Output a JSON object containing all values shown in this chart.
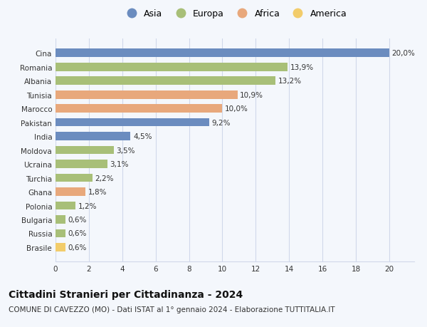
{
  "categories": [
    "Brasile",
    "Russia",
    "Bulgaria",
    "Polonia",
    "Ghana",
    "Turchia",
    "Ucraina",
    "Moldova",
    "India",
    "Pakistan",
    "Marocco",
    "Tunisia",
    "Albania",
    "Romania",
    "Cina"
  ],
  "values": [
    0.6,
    0.6,
    0.6,
    1.2,
    1.8,
    2.2,
    3.1,
    3.5,
    4.5,
    9.2,
    10.0,
    10.9,
    13.2,
    13.9,
    20.0
  ],
  "labels": [
    "0,6%",
    "0,6%",
    "0,6%",
    "1,2%",
    "1,8%",
    "2,2%",
    "3,1%",
    "3,5%",
    "4,5%",
    "9,2%",
    "10,0%",
    "10,9%",
    "13,2%",
    "13,9%",
    "20,0%"
  ],
  "bar_colors": [
    "#f2cc6b",
    "#a8bf78",
    "#a8bf78",
    "#a8bf78",
    "#e8a87c",
    "#a8bf78",
    "#a8bf78",
    "#a8bf78",
    "#6b8cbf",
    "#6b8cbf",
    "#e8a87c",
    "#e8a87c",
    "#a8bf78",
    "#a8bf78",
    "#6b8cbf"
  ],
  "title1": "Cittadini Stranieri per Cittadinanza - 2024",
  "title2": "COMUNE DI CAVEZZO (MO) - Dati ISTAT al 1° gennaio 2024 - Elaborazione TUTTITALIA.IT",
  "legend_items": [
    "Asia",
    "Europa",
    "Africa",
    "America"
  ],
  "legend_colors": [
    "#6b8cbf",
    "#a8bf78",
    "#e8a87c",
    "#f2cc6b"
  ],
  "xlim": [
    0,
    21.5
  ],
  "xticks": [
    0,
    2,
    4,
    6,
    8,
    10,
    12,
    14,
    16,
    18,
    20
  ],
  "grid_color": "#d0d8ea",
  "background_color": "#f4f7fc",
  "bar_height": 0.6,
  "label_fontsize": 7.5,
  "ytick_fontsize": 7.5,
  "xtick_fontsize": 7.5,
  "title1_fontsize": 10,
  "title2_fontsize": 7.5
}
